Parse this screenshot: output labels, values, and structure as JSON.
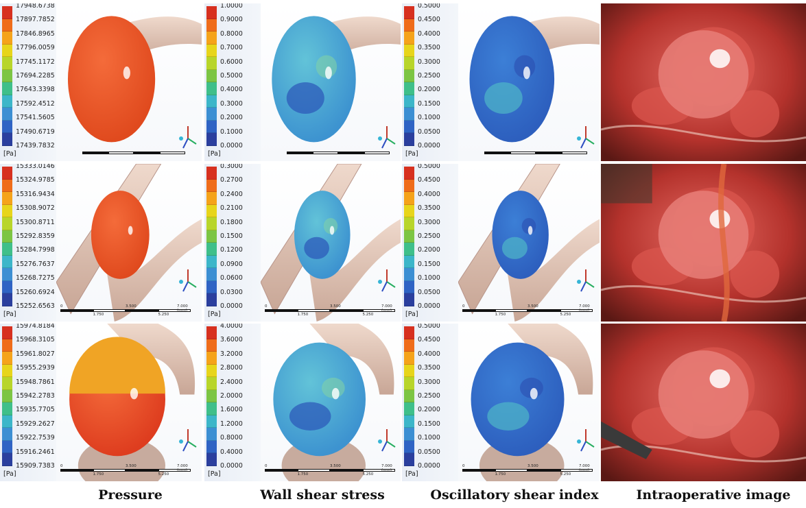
{
  "columns": [
    {
      "label": "Pressure"
    },
    {
      "label": "Wall shear stress"
    },
    {
      "label": "Oscillatory shear index"
    },
    {
      "label": "Intraoperative image"
    }
  ],
  "unit": "[Pa]",
  "rows": [
    {
      "pressure_ticks": [
        "17948.6738",
        "17897.7852",
        "17846.8965",
        "17796.0059",
        "17745.1172",
        "17694.2285",
        "17643.3398",
        "17592.4512",
        "17541.5605",
        "17490.6719",
        "17439.7832"
      ],
      "wss_ticks": [
        "1.0000",
        "0.9000",
        "0.8000",
        "0.7000",
        "0.6000",
        "0.5000",
        "0.4000",
        "0.3000",
        "0.2000",
        "0.1000",
        "0.0000"
      ],
      "osi_ticks": [
        "0.5000",
        "0.4500",
        "0.4000",
        "0.3500",
        "0.3000",
        "0.2500",
        "0.2000",
        "0.1500",
        "0.1000",
        "0.0500",
        "0.0000"
      ]
    },
    {
      "pressure_ticks": [
        "15333.0146",
        "15324.9785",
        "15316.9434",
        "15308.9072",
        "15300.8711",
        "15292.8359",
        "15284.7998",
        "15276.7637",
        "15268.7275",
        "15260.6924",
        "15252.6563"
      ],
      "wss_ticks": [
        "0.3000",
        "0.2700",
        "0.2400",
        "0.2100",
        "0.1800",
        "0.1500",
        "0.1200",
        "0.0900",
        "0.0600",
        "0.0300",
        "0.0000"
      ],
      "osi_ticks": [
        "0.5000",
        "0.4500",
        "0.4000",
        "0.3500",
        "0.3000",
        "0.2500",
        "0.2000",
        "0.1500",
        "0.1000",
        "0.0500",
        "0.0000"
      ],
      "ruler": [
        "0",
        "3.500",
        "7.000 (mm)",
        "1.750",
        "5.250"
      ]
    },
    {
      "pressure_ticks": [
        "15974.8184",
        "15968.3105",
        "15961.8027",
        "15955.2939",
        "15948.7861",
        "15942.2783",
        "15935.7705",
        "15929.2627",
        "15922.7539",
        "15916.2461",
        "15909.7383"
      ],
      "wss_ticks": [
        "4.0000",
        "3.6000",
        "3.2000",
        "2.8000",
        "2.4000",
        "2.0000",
        "1.6000",
        "1.2000",
        "0.8000",
        "0.4000",
        "0.0000"
      ],
      "osi_ticks": [
        "0.5000",
        "0.4500",
        "0.4000",
        "0.3500",
        "0.3000",
        "0.2500",
        "0.2000",
        "0.1500",
        "0.1000",
        "0.0500",
        "0.0000"
      ],
      "ruler": [
        "0",
        "3.500",
        "7.000 (mm)",
        "1.750",
        "5.250"
      ]
    }
  ],
  "colormap": [
    "#d7301f",
    "#ef6c1a",
    "#f5a31b",
    "#e7d51b",
    "#b8d52a",
    "#7cc544",
    "#3fbf8a",
    "#3cb6c9",
    "#3c8fd3",
    "#2f63c4",
    "#2b3f9e"
  ]
}
